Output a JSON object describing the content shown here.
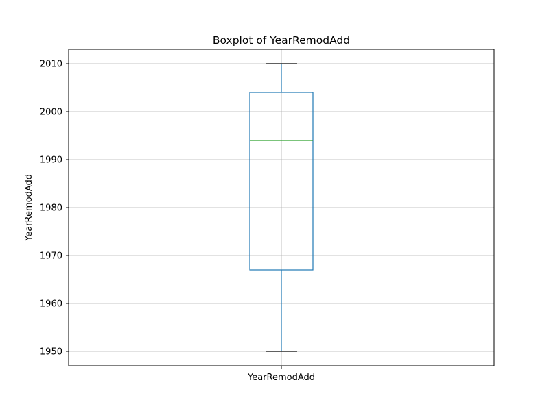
{
  "chart_data": {
    "type": "box",
    "title": "Boxplot of YearRemodAdd",
    "xlabel": "",
    "ylabel": "YearRemodAdd",
    "categories": [
      "YearRemodAdd"
    ],
    "ylim": [
      1947,
      2013
    ],
    "yticks": [
      1950,
      1960,
      1970,
      1980,
      1990,
      2000,
      2010
    ],
    "grid": true,
    "series": [
      {
        "category": "YearRemodAdd",
        "whisker_low": 1950,
        "q1": 1967,
        "median": 1994,
        "q3": 2004,
        "whisker_high": 2010
      }
    ],
    "colors": {
      "box": "#1f77b4",
      "median": "#2ca02c",
      "caps": "#000000",
      "grid": "#b0b0b0",
      "frame": "#000000"
    }
  }
}
